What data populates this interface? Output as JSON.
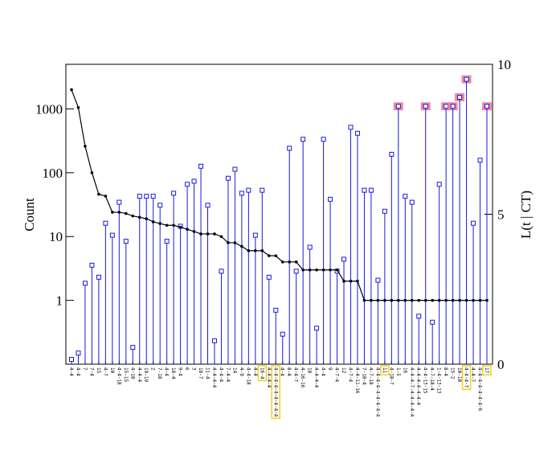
{
  "chart_data": {
    "type": "dual_axis_stem_line",
    "y_label": "Count",
    "y2_label": "L(t | CT)",
    "categories": [
      "4-4",
      "4-4",
      "7",
      "7-4",
      "15",
      "4-7",
      "10",
      "4-4-18",
      "15-15",
      "4-18",
      "4-4-4",
      "19-19",
      "2",
      "7-18",
      "4-4",
      "18-4",
      "9-4",
      "6",
      "3",
      "18-7",
      "11-4",
      "4-4-4-4",
      "4-4-4",
      "7-4-4",
      "14",
      "4-9",
      "4-4-18",
      "4-4",
      "16-4",
      "4-4-4-4",
      "4-4-4-4-4-4-4-4-4",
      "4-4",
      "8-4",
      "4-4-7",
      "4-16-16",
      "18",
      "4-4-4-4",
      "4-4",
      "9",
      "4-7-4",
      "12",
      "4-7-4",
      "4-4-11-16",
      "7-18-4",
      "4-7-18",
      "4-4-4-4-4-4-4-4-4",
      "11",
      "4-18-7",
      "1-5",
      "16",
      "4-4-4-7-4-4-4-4-4",
      "4-4-4-4-4-4-4",
      "4-4-13-15",
      "4-7-18-4",
      "1-4-13-13",
      "8-4",
      "15-2",
      "10-10",
      "4-4-4-7",
      "4-4-7",
      "4-4-4-4-4-4-4-6",
      "17"
    ],
    "series": [
      {
        "name": "Count",
        "color": "#000000",
        "values": [
          2000,
          1050,
          260,
          100,
          46,
          43,
          24,
          24,
          23,
          21,
          20,
          19,
          17,
          16,
          15,
          15,
          14,
          13,
          12,
          11,
          11,
          11,
          10,
          8,
          8,
          7,
          6,
          6,
          6,
          5,
          5,
          4,
          4,
          4,
          3,
          3,
          3,
          3,
          3,
          3,
          2,
          2,
          2,
          1,
          1,
          1,
          1,
          1,
          1,
          1,
          1,
          1,
          1,
          1,
          1,
          1,
          1,
          1,
          1,
          1,
          1,
          1
        ]
      },
      {
        "name": "L(t | CT)",
        "color": "#1a1adb",
        "axis": "y2",
        "values": [
          0.16,
          0.37,
          2.7,
          3.3,
          2.9,
          4.7,
          4.3,
          5.4,
          4.1,
          0.56,
          5.6,
          5.6,
          5.6,
          5.3,
          4.1,
          5.7,
          4.6,
          6.0,
          6.1,
          6.6,
          5.3,
          0.78,
          3.1,
          6.2,
          6.5,
          5.7,
          5.8,
          4.3,
          5.8,
          2.9,
          1.8,
          1.0,
          7.2,
          3.1,
          7.5,
          3.9,
          1.2,
          7.5,
          5.5,
          3.1,
          3.5,
          7.9,
          7.7,
          5.8,
          5.8,
          2.8,
          5.1,
          7.0,
          8.6,
          5.6,
          5.4,
          1.6,
          8.6,
          1.4,
          6.0,
          8.6,
          8.6,
          8.9,
          9.5,
          4.7,
          6.8,
          8.6
        ]
      }
    ],
    "log_y": true,
    "ylim": [
      0.1,
      5000
    ],
    "yticks": [
      1,
      10,
      100,
      1000
    ],
    "y2lim": [
      0,
      10
    ],
    "y2ticks": [
      0,
      5,
      10
    ],
    "highlighted_points_color": "#f08aa0",
    "highlighted_points": [
      48,
      52,
      55,
      56,
      57,
      58,
      61
    ],
    "highlighted_labels_color": "#f0d020",
    "highlighted_labels": [
      28,
      30,
      46,
      58,
      61
    ]
  }
}
